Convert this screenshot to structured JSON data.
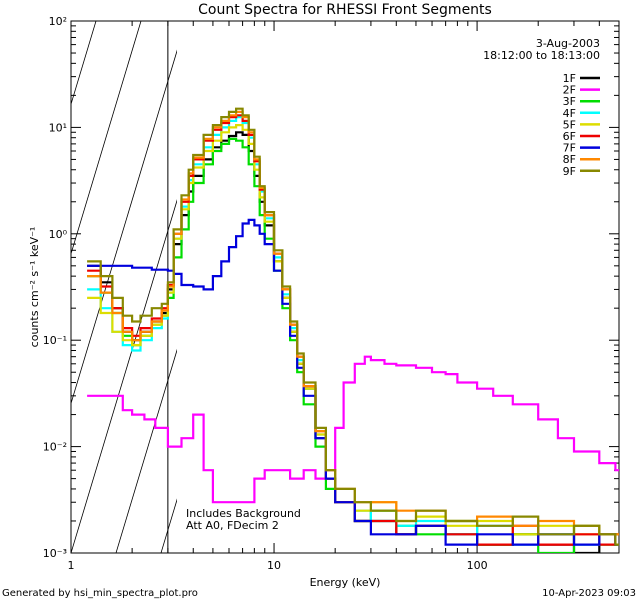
{
  "chart_data": {
    "type": "line",
    "title": "Count Spectra for RHESSI Front Segments",
    "xlabel": "Energy (keV)",
    "ylabel": "counts cm⁻² s⁻¹ keV⁻¹",
    "xscale": "log",
    "yscale": "log",
    "xlim": [
      1,
      500
    ],
    "ylim": [
      0.001,
      100
    ],
    "x_ticks": [
      "1",
      "10",
      "100"
    ],
    "y_ticks": [
      "10⁻³",
      "10⁻²",
      "10⁻¹",
      "10⁰",
      "10¹",
      "10²"
    ],
    "hatched_region_keV": [
      1,
      3
    ],
    "legend": {
      "placement": "top-right",
      "date": "3-Aug-2003",
      "time_range": "18:12:00 to 18:13:00"
    },
    "annotations": [
      "Includes Background",
      "Att A0, FDecim 2"
    ],
    "series": [
      {
        "name": "1F",
        "color": "#000000",
        "x": [
          1.2,
          1.4,
          1.6,
          1.8,
          2.0,
          2.2,
          2.5,
          2.8,
          3.0,
          3.2,
          3.5,
          3.8,
          4.0,
          4.5,
          5.0,
          5.5,
          6.0,
          6.5,
          7.0,
          7.5,
          8.0,
          8.5,
          9.0,
          10,
          11,
          12,
          13,
          14,
          16,
          18,
          20,
          25,
          30,
          40,
          50,
          70,
          100,
          150,
          200,
          300,
          400,
          480
        ],
        "values": [
          0.5,
          0.35,
          0.2,
          0.12,
          0.1,
          0.12,
          0.15,
          0.18,
          0.3,
          0.8,
          1.5,
          2.5,
          3.5,
          5,
          6.5,
          7.5,
          8.3,
          9,
          8.5,
          6,
          3.5,
          2,
          1.2,
          0.55,
          0.25,
          0.12,
          0.06,
          0.035,
          0.012,
          0.005,
          0.003,
          0.002,
          0.002,
          0.0015,
          0.0018,
          0.0015,
          0.0012,
          0.0015,
          0.0012,
          0.001,
          0.0015,
          0.0012
        ]
      },
      {
        "name": "2F",
        "color": "#ff00ff",
        "x": [
          1.2,
          1.5,
          1.8,
          2.0,
          2.3,
          2.6,
          3.0,
          3.5,
          4.0,
          4.5,
          5.0,
          6.0,
          7.0,
          8.0,
          9.0,
          10,
          12,
          14,
          16,
          18,
          20,
          22,
          25,
          28,
          30,
          35,
          40,
          50,
          60,
          70,
          80,
          100,
          120,
          150,
          200,
          250,
          300,
          400,
          480
        ],
        "values": [
          0.03,
          0.03,
          0.022,
          0.02,
          0.018,
          0.015,
          0.01,
          0.012,
          0.02,
          0.006,
          0.003,
          0.003,
          0.003,
          0.005,
          0.006,
          0.006,
          0.005,
          0.006,
          0.005,
          0.006,
          0.015,
          0.04,
          0.06,
          0.07,
          0.065,
          0.06,
          0.058,
          0.055,
          0.05,
          0.048,
          0.04,
          0.035,
          0.03,
          0.025,
          0.018,
          0.012,
          0.009,
          0.007,
          0.006
        ]
      },
      {
        "name": "3F",
        "color": "#00dd00",
        "x": [
          1.2,
          1.4,
          1.6,
          1.8,
          2.0,
          2.2,
          2.5,
          2.8,
          3.0,
          3.2,
          3.5,
          3.8,
          4.0,
          4.5,
          5.0,
          5.5,
          6.0,
          6.5,
          7.0,
          7.5,
          8.0,
          8.5,
          9.0,
          10,
          11,
          12,
          13,
          14,
          16,
          18,
          20,
          25,
          30,
          40,
          50,
          70,
          100,
          150,
          200,
          300,
          400,
          480
        ],
        "values": [
          0.4,
          0.28,
          0.18,
          0.11,
          0.09,
          0.11,
          0.14,
          0.17,
          0.25,
          0.6,
          1.1,
          2,
          3,
          4.5,
          6,
          7,
          7.8,
          7.5,
          6.5,
          4.5,
          2.8,
          1.5,
          0.9,
          0.45,
          0.2,
          0.1,
          0.05,
          0.025,
          0.01,
          0.004,
          0.003,
          0.002,
          0.0025,
          0.0018,
          0.0015,
          0.002,
          0.0012,
          0.0015,
          0.001,
          0.0018,
          0.0012,
          0.0015
        ]
      },
      {
        "name": "4F",
        "color": "#00ffff",
        "x": [
          1.2,
          1.4,
          1.6,
          1.8,
          2.0,
          2.2,
          2.5,
          2.8,
          3.0,
          3.2,
          3.5,
          3.8,
          4.0,
          4.5,
          5.0,
          5.5,
          6.0,
          6.5,
          7.0,
          7.5,
          8.0,
          8.5,
          9.0,
          10,
          11,
          12,
          13,
          14,
          16,
          18,
          20,
          25,
          30,
          40,
          50,
          70,
          100,
          150,
          200,
          300,
          400,
          480
        ],
        "values": [
          0.3,
          0.2,
          0.12,
          0.09,
          0.08,
          0.1,
          0.13,
          0.16,
          0.28,
          0.9,
          1.8,
          3.2,
          4.5,
          6.5,
          8.5,
          10,
          11.5,
          12.5,
          11,
          8,
          4.5,
          2.5,
          1.4,
          0.6,
          0.27,
          0.13,
          0.065,
          0.035,
          0.013,
          0.005,
          0.003,
          0.0025,
          0.002,
          0.0018,
          0.002,
          0.0015,
          0.0018,
          0.0012,
          0.0015,
          0.0012,
          0.0015,
          0.0012
        ]
      },
      {
        "name": "5F",
        "color": "#dddd00",
        "x": [
          1.2,
          1.4,
          1.6,
          1.8,
          2.0,
          2.2,
          2.5,
          2.8,
          3.0,
          3.2,
          3.5,
          3.8,
          4.0,
          4.5,
          5.0,
          5.5,
          6.0,
          6.5,
          7.0,
          7.5,
          8.0,
          8.5,
          9.0,
          10,
          11,
          12,
          13,
          14,
          16,
          18,
          20,
          25,
          30,
          40,
          50,
          70,
          100,
          150,
          200,
          300,
          400,
          480
        ],
        "values": [
          0.25,
          0.18,
          0.12,
          0.1,
          0.09,
          0.11,
          0.14,
          0.17,
          0.28,
          0.9,
          1.7,
          3,
          4.2,
          6,
          7.5,
          9,
          10,
          10.5,
          9.5,
          7,
          4,
          2.2,
          1.3,
          0.55,
          0.25,
          0.12,
          0.06,
          0.035,
          0.013,
          0.005,
          0.003,
          0.0025,
          0.003,
          0.002,
          0.0022,
          0.0018,
          0.002,
          0.0015,
          0.0018,
          0.0015,
          0.0015,
          0.0012
        ]
      },
      {
        "name": "6F",
        "color": "#ee0000",
        "x": [
          1.2,
          1.4,
          1.6,
          1.8,
          2.0,
          2.2,
          2.5,
          2.8,
          3.0,
          3.2,
          3.5,
          3.8,
          4.0,
          4.5,
          5.0,
          5.5,
          6.0,
          6.5,
          7.0,
          7.5,
          8.0,
          8.5,
          9.0,
          10,
          11,
          12,
          13,
          14,
          16,
          18,
          20,
          25,
          30,
          40,
          50,
          70,
          100,
          150,
          200,
          300,
          400,
          480
        ],
        "values": [
          0.45,
          0.32,
          0.2,
          0.13,
          0.11,
          0.13,
          0.16,
          0.2,
          0.33,
          1,
          2,
          3.5,
          5,
          7.5,
          9.5,
          11,
          12.5,
          13,
          11.5,
          8.5,
          4.8,
          2.6,
          1.5,
          0.65,
          0.3,
          0.14,
          0.07,
          0.037,
          0.014,
          0.005,
          0.003,
          0.002,
          0.002,
          0.0015,
          0.0018,
          0.0015,
          0.0012,
          0.0018,
          0.0012,
          0.0015,
          0.0012,
          0.0015
        ]
      },
      {
        "name": "7F",
        "color": "#0000dd",
        "x": [
          1.2,
          1.5,
          2.0,
          2.5,
          3.0,
          3.2,
          3.5,
          4.0,
          4.5,
          5.0,
          5.5,
          6.0,
          6.5,
          7.0,
          7.5,
          8.0,
          8.5,
          9.0,
          10,
          11,
          12,
          13,
          14,
          16,
          18,
          20,
          25,
          30,
          40,
          50,
          70,
          100,
          150,
          200,
          300,
          400,
          480
        ],
        "values": [
          0.5,
          0.5,
          0.48,
          0.46,
          0.45,
          0.42,
          0.33,
          0.32,
          0.3,
          0.4,
          0.55,
          0.75,
          0.95,
          1.25,
          1.35,
          1.2,
          1,
          0.8,
          0.45,
          0.22,
          0.11,
          0.055,
          0.03,
          0.012,
          0.005,
          0.003,
          0.002,
          0.0015,
          0.0015,
          0.0018,
          0.0012,
          0.0015,
          0.0012,
          0.0015,
          0.0012,
          0.0015,
          0.0012
        ]
      },
      {
        "name": "8F",
        "color": "#ff8800",
        "x": [
          1.2,
          1.4,
          1.6,
          1.8,
          2.0,
          2.2,
          2.5,
          2.8,
          3.0,
          3.2,
          3.5,
          3.8,
          4.0,
          4.5,
          5.0,
          5.5,
          6.0,
          6.5,
          7.0,
          7.5,
          8.0,
          8.5,
          9.0,
          10,
          11,
          12,
          13,
          14,
          16,
          18,
          20,
          25,
          30,
          40,
          50,
          70,
          100,
          150,
          200,
          300,
          400,
          480
        ],
        "values": [
          0.4,
          0.28,
          0.18,
          0.12,
          0.1,
          0.12,
          0.15,
          0.19,
          0.32,
          1,
          2.1,
          3.7,
          5.2,
          7.8,
          10,
          11.5,
          13,
          14,
          12.5,
          9,
          5,
          2.7,
          1.5,
          0.65,
          0.3,
          0.14,
          0.07,
          0.037,
          0.014,
          0.006,
          0.004,
          0.003,
          0.003,
          0.0025,
          0.0025,
          0.002,
          0.0022,
          0.0018,
          0.002,
          0.0018,
          0.0015,
          0.0015
        ]
      },
      {
        "name": "9F",
        "color": "#888800",
        "x": [
          1.2,
          1.4,
          1.6,
          1.8,
          2.0,
          2.2,
          2.5,
          2.8,
          3.0,
          3.2,
          3.5,
          3.8,
          4.0,
          4.5,
          5.0,
          5.5,
          6.0,
          6.5,
          7.0,
          7.5,
          8.0,
          8.5,
          9.0,
          10,
          11,
          12,
          13,
          14,
          16,
          18,
          20,
          25,
          30,
          40,
          50,
          70,
          100,
          150,
          200,
          300,
          400,
          480
        ],
        "values": [
          0.55,
          0.4,
          0.25,
          0.17,
          0.15,
          0.17,
          0.2,
          0.22,
          0.35,
          1.1,
          2.3,
          4,
          5.5,
          8.5,
          10.5,
          12.5,
          14,
          15,
          13,
          9.5,
          5.3,
          2.8,
          1.6,
          0.7,
          0.32,
          0.15,
          0.075,
          0.04,
          0.015,
          0.006,
          0.004,
          0.003,
          0.0025,
          0.002,
          0.0025,
          0.002,
          0.0018,
          0.0022,
          0.0015,
          0.0018,
          0.0015,
          0.0012
        ]
      }
    ]
  },
  "footer": {
    "generator": "Generated by hsi_min_spectra_plot.pro",
    "timestamp": "10-Apr-2023 09:03"
  }
}
